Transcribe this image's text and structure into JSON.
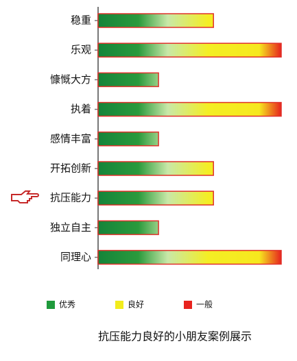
{
  "chart_data": {
    "type": "barh",
    "categories": [
      "稳重",
      "乐观",
      "慷慨大方",
      "执着",
      "感情丰富",
      "开拓创新",
      "抗压能力",
      "独立自主",
      "同理心"
    ],
    "values": [
      63,
      100,
      33,
      100,
      33,
      63,
      63,
      33,
      100
    ],
    "xlim": [
      0,
      100
    ],
    "legend": [
      {
        "name": "优秀",
        "color": "#1f9a3c"
      },
      {
        "name": "良好",
        "color": "#f2ec1c"
      },
      {
        "name": "一般",
        "color": "#e8231f"
      }
    ],
    "caption": "抗压能力良好的小朋友案例展示"
  }
}
